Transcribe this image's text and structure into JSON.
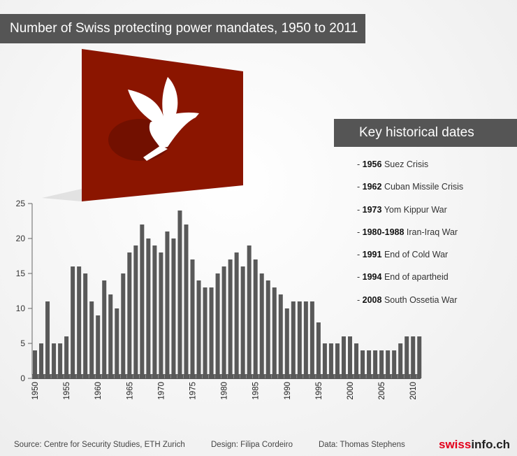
{
  "title": "Number of Swiss protecting power mandates, 1950 to 2011",
  "key_title": "Key historical dates",
  "events": [
    {
      "year": "1956",
      "label": "Suez Crisis"
    },
    {
      "year": "1962",
      "label": "Cuban Missile Crisis"
    },
    {
      "year": "1973",
      "label": "Yom Kippur War"
    },
    {
      "year": "1980-1988",
      "label": "Iran-Iraq War"
    },
    {
      "year": "1991",
      "label": "End of Cold War"
    },
    {
      "year": "1994",
      "label": "End of apartheid"
    },
    {
      "year": "2008",
      "label": "South Ossetia War"
    }
  ],
  "footer": {
    "source": "Source: Centre for Security Studies, ETH Zurich",
    "design": "Design: Filipa Cordeiro",
    "data": "Data:  Thomas Stephens",
    "logo_a": "swiss",
    "logo_b": "info.ch"
  },
  "colors": {
    "bar": "#595959",
    "panel": "#8b1500",
    "accent": "#e3001b"
  },
  "chart_data": {
    "type": "bar",
    "title": "Number of Swiss protecting power mandates, 1950 to 2011",
    "xlabel": "",
    "ylabel": "",
    "ylim": [
      0,
      25
    ],
    "yticks": [
      0,
      5,
      10,
      15,
      20,
      25
    ],
    "xticks": [
      1950,
      1955,
      1960,
      1965,
      1970,
      1975,
      1980,
      1985,
      1990,
      1995,
      2000,
      2005,
      2010
    ],
    "x_start": 1950,
    "values": [
      4,
      5,
      11,
      5,
      5,
      6,
      16,
      16,
      15,
      11,
      9,
      14,
      12,
      10,
      15,
      18,
      19,
      22,
      20,
      19,
      18,
      21,
      20,
      24,
      22,
      17,
      14,
      13,
      13,
      15,
      16,
      17,
      18,
      16,
      19,
      17,
      15,
      14,
      13,
      12,
      10,
      11,
      11,
      11,
      11,
      8,
      5,
      5,
      5,
      6,
      6,
      5,
      4,
      4,
      4,
      4,
      4,
      4,
      5,
      6,
      6,
      6
    ]
  }
}
